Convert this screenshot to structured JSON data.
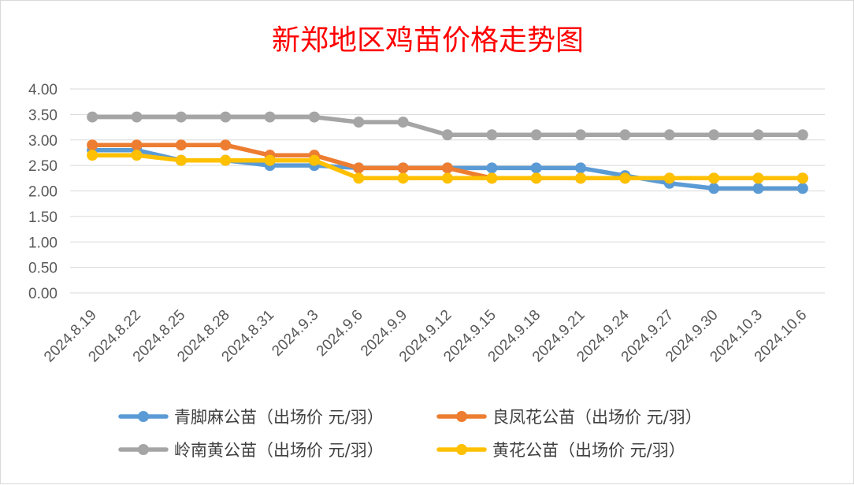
{
  "chart_data": {
    "type": "line",
    "title": "新郑地区鸡苗价格走势图",
    "xlabel": "",
    "ylabel": "",
    "ylim": [
      0,
      4
    ],
    "yticks": [
      "0.00",
      "0.50",
      "1.00",
      "1.50",
      "2.00",
      "2.50",
      "3.00",
      "3.50",
      "4.00"
    ],
    "grid": true,
    "legend_position": "bottom",
    "x": [
      "2024.8.19",
      "2024.8.22",
      "2024.8.25",
      "2024.8.28",
      "2024.8.31",
      "2024.9.3",
      "2024.9.6",
      "2024.9.9",
      "2024.9.12",
      "2024.9.15",
      "2024.9.18",
      "2024.9.21",
      "2024.9.24",
      "2024.9.27",
      "2024.9.30",
      "2024.10.3",
      "2024.10.6"
    ],
    "series": [
      {
        "name": "青脚麻公苗（出场价 元/羽）",
        "color": "#5b9bd5",
        "values": [
          2.8,
          2.8,
          2.6,
          2.6,
          2.5,
          2.5,
          2.45,
          2.45,
          2.45,
          2.45,
          2.45,
          2.45,
          2.3,
          2.15,
          2.05,
          2.05,
          2.05
        ]
      },
      {
        "name": "良凤花公苗（出场价 元/羽）",
        "color": "#ed7d31",
        "values": [
          2.9,
          2.9,
          2.9,
          2.9,
          2.7,
          2.7,
          2.45,
          2.45,
          2.45,
          2.25,
          2.25,
          2.25,
          2.25,
          2.25,
          2.25,
          2.25,
          2.25
        ]
      },
      {
        "name": "岭南黄公苗（出场价 元/羽）",
        "color": "#a5a5a5",
        "values": [
          3.45,
          3.45,
          3.45,
          3.45,
          3.45,
          3.45,
          3.35,
          3.35,
          3.1,
          3.1,
          3.1,
          3.1,
          3.1,
          3.1,
          3.1,
          3.1,
          3.1
        ]
      },
      {
        "name": "黄花公苗（出场价 元/羽）",
        "color": "#ffc000",
        "values": [
          2.7,
          2.7,
          2.6,
          2.6,
          2.6,
          2.6,
          2.25,
          2.25,
          2.25,
          2.25,
          2.25,
          2.25,
          2.25,
          2.25,
          2.25,
          2.25,
          2.25
        ]
      }
    ]
  }
}
